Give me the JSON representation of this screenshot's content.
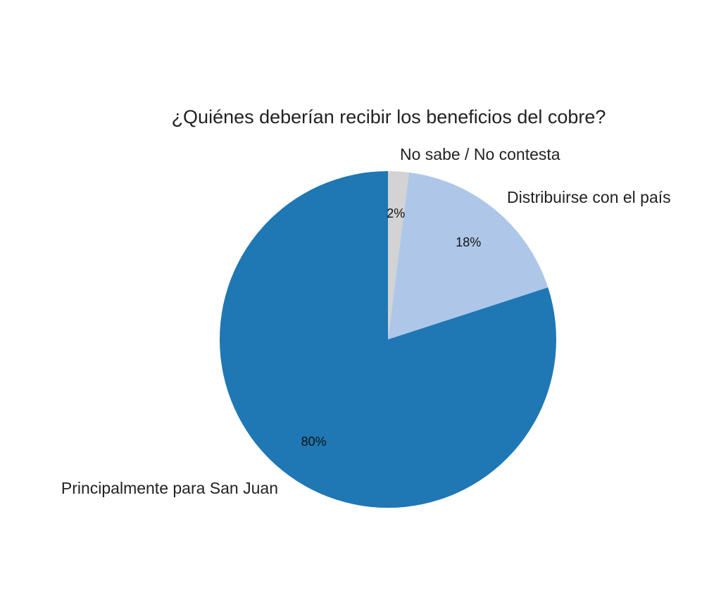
{
  "chart_data": {
    "type": "pie",
    "title": "¿Quiénes deberían recibir los beneficios del cobre?",
    "categories": [
      "No sabe / No contesta",
      "Distribuirse con el país",
      "Principalmente para San Juan"
    ],
    "values": [
      2,
      18,
      80
    ],
    "value_labels": [
      "2%",
      "18%",
      "80%"
    ],
    "colors": [
      "#d3d3d3",
      "#aec7e8",
      "#1f77b4"
    ],
    "start": "top",
    "direction": "clockwise"
  }
}
